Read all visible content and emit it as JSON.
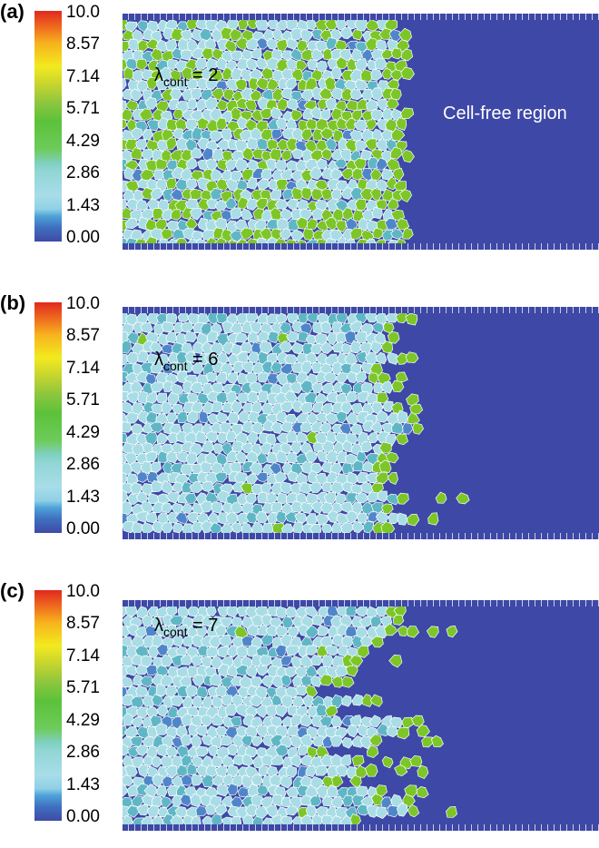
{
  "colorbar": {
    "ticks": [
      "10.0",
      "8.57",
      "7.14",
      "5.71",
      "4.29",
      "2.86",
      "1.43",
      "0.00"
    ]
  },
  "panels": [
    {
      "label": "(a)",
      "lambda_symbol": "λ",
      "lambda_sub": "cont",
      "lambda_value": "= 2",
      "region_label": "Cell-free region"
    },
    {
      "label": "(b)",
      "lambda_symbol": "λ",
      "lambda_sub": "cont",
      "lambda_value": "= 6",
      "region_label": ""
    },
    {
      "label": "(c)",
      "lambda_symbol": "λ",
      "lambda_sub": "cont",
      "lambda_value": "= 7",
      "region_label": ""
    }
  ],
  "colors": {
    "cell_free": "#3e48a6",
    "cell_light": "#a9dde6",
    "cell_green": "#7cc628",
    "cell_mid": "#5fb7c6",
    "cell_blue": "#4f86c9"
  }
}
